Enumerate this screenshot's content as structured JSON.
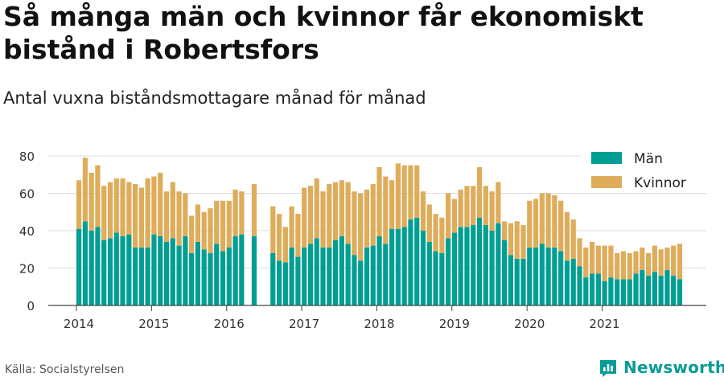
{
  "title": "Så många män och kvinnor får ekonomiskt bistånd i Robertsfors",
  "subtitle": "Antal vuxna biståndsmottagare månad för månad",
  "source": "Källa: Socialstyrelsen",
  "brand": "Newsworthy",
  "colors": {
    "men": "#009e93",
    "women": "#deac5a",
    "brand": "#0a9b94"
  },
  "chart_data": {
    "type": "bar",
    "stacked": true,
    "x_start": "2014-01",
    "x_ticks": [
      "2014",
      "2015",
      "2016",
      "2017",
      "2018",
      "2019",
      "2020",
      "2021"
    ],
    "y_ticks": [
      0,
      20,
      40,
      60,
      80
    ],
    "ylim": [
      0,
      82
    ],
    "grid": true,
    "legend_position": "top-right",
    "series": [
      {
        "name": "Män",
        "values": [
          41,
          45,
          40,
          42,
          35,
          36,
          39,
          37,
          38,
          31,
          31,
          31,
          38,
          37,
          34,
          36,
          32,
          37,
          28,
          34,
          30,
          28,
          33,
          29,
          31,
          37,
          38,
          null,
          37,
          null,
          null,
          28,
          24,
          23,
          31,
          26,
          31,
          33,
          36,
          31,
          31,
          35,
          37,
          33,
          27,
          24,
          31,
          32,
          37,
          33,
          41,
          41,
          42,
          46,
          47,
          40,
          34,
          29,
          28,
          36,
          39,
          42,
          42,
          43,
          47,
          43,
          40,
          44,
          35,
          27,
          25,
          25,
          31,
          31,
          33,
          31,
          31,
          29,
          24,
          25,
          21,
          15,
          17,
          17,
          13,
          15,
          14,
          14,
          14,
          17,
          19,
          16,
          18,
          16,
          19,
          16,
          14
        ]
      },
      {
        "name": "Kvinnor",
        "values": [
          26,
          34,
          31,
          33,
          29,
          30,
          29,
          31,
          28,
          34,
          32,
          37,
          31,
          34,
          27,
          30,
          29,
          23,
          20,
          20,
          20,
          24,
          23,
          27,
          25,
          25,
          23,
          null,
          28,
          null,
          null,
          25,
          25,
          19,
          22,
          23,
          32,
          31,
          32,
          30,
          34,
          31,
          30,
          33,
          34,
          36,
          31,
          33,
          37,
          36,
          26,
          35,
          33,
          29,
          28,
          21,
          20,
          20,
          19,
          24,
          18,
          20,
          22,
          21,
          27,
          21,
          21,
          22,
          10,
          17,
          20,
          18,
          25,
          26,
          27,
          29,
          28,
          27,
          26,
          21,
          15,
          16,
          17,
          15,
          19,
          17,
          14,
          15,
          14,
          12,
          12,
          12,
          14,
          14,
          12,
          16,
          19
        ]
      }
    ]
  }
}
